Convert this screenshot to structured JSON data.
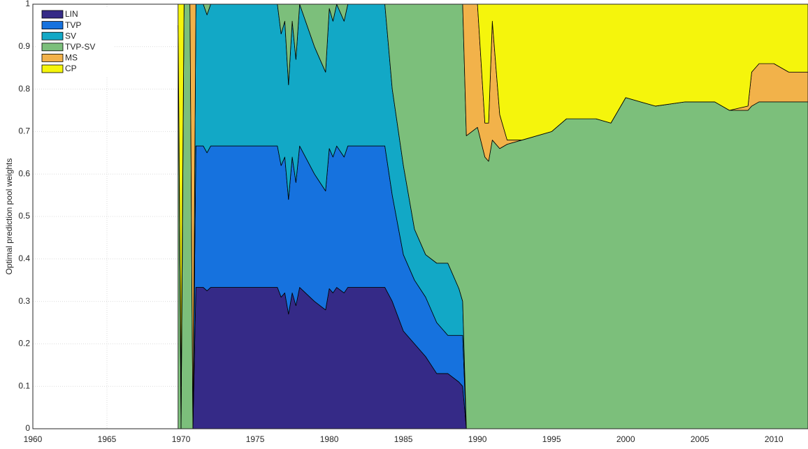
{
  "chart_data": {
    "type": "stacked_area",
    "y_label": "Optimal prediction pool weights",
    "xlim": [
      1960,
      2012.3
    ],
    "ylim": [
      0,
      1
    ],
    "xticks": [
      1960,
      1965,
      1970,
      1975,
      1980,
      1985,
      1990,
      1995,
      2000,
      2005,
      2010
    ],
    "yticks": [
      0,
      0.1,
      0.2,
      0.3,
      0.4,
      0.5,
      0.6,
      0.7,
      0.8,
      0.9,
      1
    ],
    "grid": true,
    "legend": "upper left",
    "x": [
      1969.8,
      1970.0,
      1970.2,
      1970.6,
      1970.8,
      1971.0,
      1971.5,
      1971.75,
      1972.0,
      1976.5,
      1976.75,
      1977.0,
      1977.25,
      1977.5,
      1977.75,
      1978.0,
      1979.0,
      1979.75,
      1980.0,
      1980.25,
      1980.5,
      1981.0,
      1981.25,
      1983.75,
      1984.25,
      1985.0,
      1985.75,
      1986.5,
      1987.25,
      1988.0,
      1988.75,
      1989.0,
      1989.25,
      1990.0,
      1990.5,
      1990.75,
      1991.0,
      1991.5,
      1992.0,
      1993.0,
      1995.0,
      1996.0,
      1998.0,
      1999.0,
      2000.0,
      2001.0,
      2002.0,
      2004.0,
      2006.0,
      2007.0,
      2008.25,
      2008.5,
      2009.0,
      2010.0,
      2011.0,
      2012.3
    ],
    "series": [
      {
        "name": "LIN",
        "color": "#352a87",
        "values": [
          0,
          0,
          0,
          0,
          0,
          0.333,
          0.333,
          0.325,
          0.333,
          0.333,
          0.31,
          0.32,
          0.27,
          0.32,
          0.29,
          0.333,
          0.3,
          0.28,
          0.33,
          0.32,
          0.333,
          0.32,
          0.333,
          0.333,
          0.3,
          0.23,
          0.2,
          0.17,
          0.13,
          0.13,
          0.11,
          0.1,
          0,
          0,
          0,
          0,
          0,
          0,
          0,
          0,
          0,
          0,
          0,
          0,
          0,
          0,
          0,
          0,
          0,
          0,
          0,
          0,
          0,
          0,
          0,
          0
        ]
      },
      {
        "name": "TVP",
        "color": "#1672de",
        "values": [
          0,
          0,
          0,
          0,
          0,
          0.333,
          0.333,
          0.325,
          0.333,
          0.333,
          0.31,
          0.32,
          0.27,
          0.32,
          0.29,
          0.333,
          0.3,
          0.28,
          0.33,
          0.32,
          0.333,
          0.32,
          0.333,
          0.333,
          0.25,
          0.18,
          0.15,
          0.14,
          0.12,
          0.09,
          0.11,
          0.12,
          0,
          0,
          0,
          0,
          0,
          0,
          0,
          0,
          0,
          0,
          0,
          0,
          0,
          0,
          0,
          0,
          0,
          0,
          0,
          0,
          0,
          0,
          0,
          0
        ]
      },
      {
        "name": "SV",
        "color": "#12a8c6",
        "values": [
          0,
          0,
          0,
          0,
          0,
          0.334,
          0.334,
          0.325,
          0.334,
          0.334,
          0.31,
          0.32,
          0.27,
          0.32,
          0.29,
          0.334,
          0.3,
          0.28,
          0.33,
          0.32,
          0.334,
          0.32,
          0.334,
          0.334,
          0.25,
          0.21,
          0.12,
          0.1,
          0.14,
          0.17,
          0.11,
          0.08,
          0,
          0,
          0,
          0,
          0,
          0,
          0,
          0,
          0,
          0,
          0,
          0,
          0,
          0,
          0,
          0,
          0,
          0,
          0,
          0,
          0,
          0,
          0,
          0
        ]
      },
      {
        "name": "TVP-SV",
        "color": "#7cbf7b",
        "values": [
          0.95,
          0,
          1,
          1,
          0,
          0,
          0,
          0.025,
          0,
          0,
          0.07,
          0.04,
          0.19,
          0.04,
          0.13,
          0,
          0.1,
          0.16,
          0.01,
          0.04,
          0,
          0.04,
          0,
          0,
          0.2,
          0.38,
          0.53,
          0.59,
          0.61,
          0.61,
          0.67,
          0.7,
          0.69,
          0.71,
          0.64,
          0.63,
          0.68,
          0.66,
          0.67,
          0.68,
          0.7,
          0.73,
          0.73,
          0.72,
          0.78,
          0.77,
          0.76,
          0.77,
          0.77,
          0.75,
          0.75,
          0.76,
          0.77,
          0.77,
          0.77,
          0.77
        ]
      },
      {
        "name": "MS",
        "color": "#f2b24a",
        "values": [
          0,
          0.1,
          0,
          0,
          1,
          0,
          0,
          0,
          0,
          0,
          0,
          0,
          0,
          0,
          0,
          0,
          0,
          0,
          0,
          0,
          0,
          0,
          0,
          0,
          0,
          0,
          0,
          0,
          0,
          0,
          0,
          0,
          0.31,
          0.29,
          0.08,
          0.09,
          0.28,
          0.08,
          0.01,
          0,
          0,
          0,
          0,
          0,
          0,
          0,
          0,
          0,
          0,
          0,
          0.01,
          0.08,
          0.09,
          0.09,
          0.07,
          0.07
        ]
      },
      {
        "name": "CP",
        "color": "#f5f50c",
        "values": [
          0.05,
          0.9,
          0,
          0,
          0,
          0,
          0,
          0,
          0,
          0,
          0,
          0,
          0,
          0,
          0,
          0,
          0,
          0,
          0,
          0,
          0,
          0,
          0,
          0,
          0,
          0,
          0,
          0,
          0,
          0,
          0,
          0,
          0,
          0,
          0.28,
          0.28,
          0.04,
          0.26,
          0.32,
          0.32,
          0.3,
          0.27,
          0.27,
          0.28,
          0.22,
          0.23,
          0.24,
          0.23,
          0.23,
          0.25,
          0.24,
          0.16,
          0.14,
          0.14,
          0.16,
          0.16
        ]
      }
    ]
  }
}
